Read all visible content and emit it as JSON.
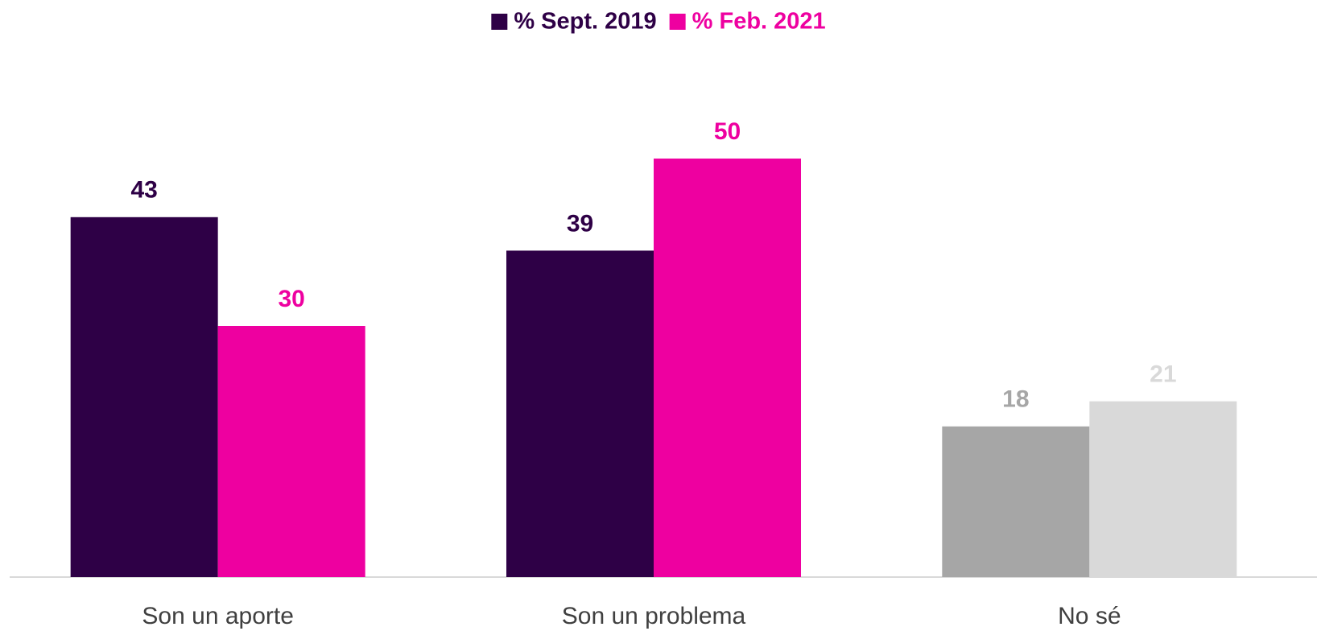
{
  "chart_data": {
    "type": "bar",
    "categories": [
      "Son un aporte",
      "Son un problema",
      "No sé"
    ],
    "series": [
      {
        "name": "% Sept. 2019",
        "color": "#2e0046",
        "colors": [
          "#2e0046",
          "#2e0046",
          "#a6a6a6"
        ],
        "values": [
          43,
          39,
          18
        ]
      },
      {
        "name": "% Feb. 2021",
        "color": "#ee00a0",
        "colors": [
          "#ee00a0",
          "#ee00a0",
          "#d9d9d9"
        ],
        "values": [
          30,
          50,
          21
        ]
      }
    ],
    "legend": "top"
  }
}
